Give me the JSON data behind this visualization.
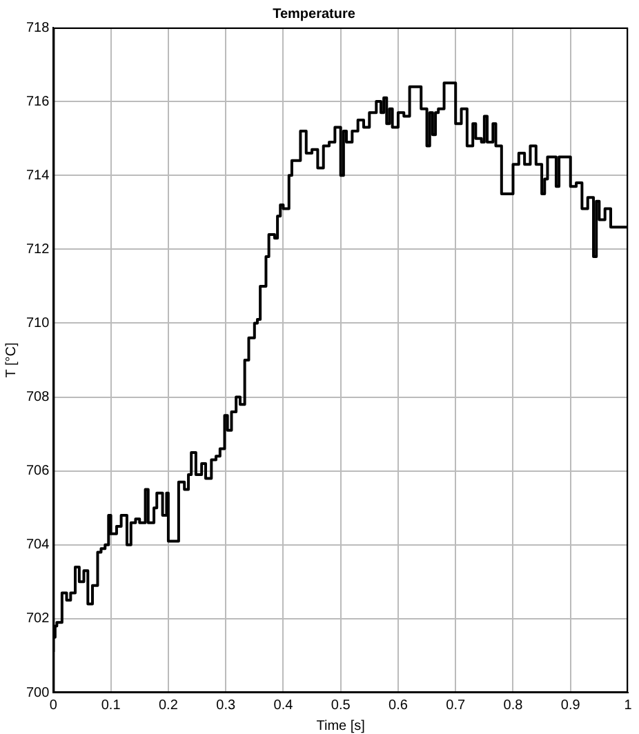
{
  "chart_data": {
    "type": "step",
    "title": "Temperature",
    "xlabel": "Time [s]",
    "ylabel": "T [°C]",
    "x": [
      0,
      0.003,
      0.006,
      0.015,
      0.023,
      0.03,
      0.038,
      0.045,
      0.053,
      0.06,
      0.068,
      0.077,
      0.083,
      0.09,
      0.096,
      0.1,
      0.11,
      0.118,
      0.128,
      0.135,
      0.143,
      0.15,
      0.16,
      0.165,
      0.175,
      0.18,
      0.19,
      0.197,
      0.2,
      0.218,
      0.228,
      0.235,
      0.24,
      0.248,
      0.258,
      0.265,
      0.275,
      0.283,
      0.29,
      0.298,
      0.303,
      0.31,
      0.318,
      0.325,
      0.333,
      0.34,
      0.35,
      0.355,
      0.36,
      0.37,
      0.375,
      0.385,
      0.39,
      0.395,
      0.4,
      0.41,
      0.415,
      0.43,
      0.44,
      0.45,
      0.46,
      0.47,
      0.48,
      0.49,
      0.5,
      0.505,
      0.51,
      0.52,
      0.53,
      0.54,
      0.55,
      0.562,
      0.57,
      0.575,
      0.58,
      0.585,
      0.59,
      0.6,
      0.61,
      0.62,
      0.64,
      0.65,
      0.655,
      0.66,
      0.665,
      0.67,
      0.68,
      0.7,
      0.71,
      0.72,
      0.73,
      0.735,
      0.745,
      0.75,
      0.755,
      0.765,
      0.77,
      0.78,
      0.8,
      0.81,
      0.82,
      0.83,
      0.84,
      0.85,
      0.855,
      0.86,
      0.875,
      0.88,
      0.9,
      0.91,
      0.92,
      0.93,
      0.94,
      0.945,
      0.95,
      0.96,
      0.97,
      0.985,
      1
    ],
    "series": [
      {
        "color": "#000000",
        "values": [
          701.1,
          701.5,
          701.8,
          701.9,
          702.7,
          702.5,
          702.7,
          703.4,
          703.0,
          703.3,
          702.4,
          702.9,
          703.8,
          703.9,
          704.0,
          704.8,
          704.3,
          704.5,
          704.8,
          704.0,
          704.6,
          704.7,
          704.6,
          705.5,
          704.6,
          705.0,
          705.4,
          704.8,
          705.4,
          704.1,
          705.7,
          705.5,
          705.9,
          706.5,
          705.9,
          706.2,
          705.8,
          706.3,
          706.4,
          706.6,
          707.5,
          707.1,
          707.6,
          708.0,
          707.8,
          709.0,
          709.6,
          710.0,
          710.1,
          711.0,
          711.8,
          712.4,
          712.3,
          712.9,
          713.2,
          713.1,
          714.0,
          714.4,
          715.2,
          714.6,
          714.7,
          714.2,
          714.8,
          714.9,
          715.3,
          714.0,
          715.2,
          714.9,
          715.2,
          715.5,
          715.3,
          715.7,
          716.0,
          715.7,
          716.1,
          715.4,
          715.8,
          715.3,
          715.7,
          715.6,
          716.4,
          715.8,
          714.8,
          715.7,
          715.1,
          715.7,
          715.8,
          716.5,
          715.4,
          715.8,
          714.8,
          715.4,
          715.0,
          714.9,
          715.6,
          714.9,
          715.4,
          714.8,
          713.5,
          714.3,
          714.6,
          714.3,
          714.8,
          714.3,
          713.5,
          713.9,
          714.5,
          713.7,
          714.5,
          713.7,
          713.8,
          713.1,
          713.4,
          711.8,
          713.3,
          712.8,
          713.1,
          712.6,
          712.6
        ]
      }
    ],
    "xlim": [
      0,
      1
    ],
    "xticks": [
      0,
      0.1,
      0.2,
      0.3,
      0.4,
      0.5,
      0.6,
      0.7,
      0.8,
      0.9,
      1
    ],
    "ylim": [
      700,
      718
    ],
    "yticks": [
      700,
      702,
      704,
      706,
      708,
      710,
      712,
      714,
      716,
      718
    ],
    "grid": true,
    "legend": false,
    "marker": "none",
    "line_style": "solid"
  }
}
